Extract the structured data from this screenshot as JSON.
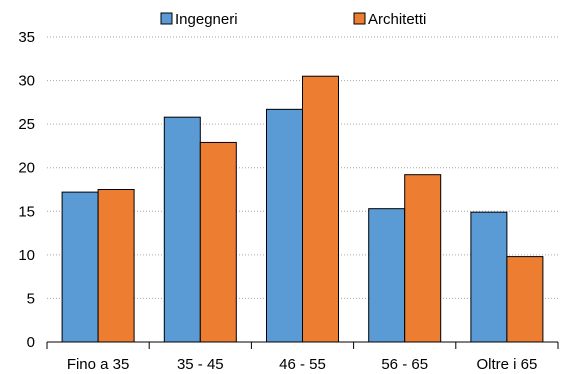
{
  "chart_data": {
    "type": "bar",
    "categories": [
      "Fino a 35",
      "35 - 45",
      "46 - 55",
      "56 - 65",
      "Oltre i 65"
    ],
    "series": [
      {
        "name": "Ingegneri",
        "values": [
          17.2,
          25.8,
          26.7,
          15.3,
          14.9
        ],
        "color": "#5b9bd5"
      },
      {
        "name": "Architetti",
        "values": [
          17.5,
          22.9,
          30.5,
          19.2,
          9.8
        ],
        "color": "#ed7d31"
      }
    ],
    "ylim": [
      0,
      35
    ],
    "yticks": [
      0,
      5,
      10,
      15,
      20,
      25,
      30,
      35
    ],
    "grid": "horizontal dotted",
    "legend_position": "top"
  }
}
